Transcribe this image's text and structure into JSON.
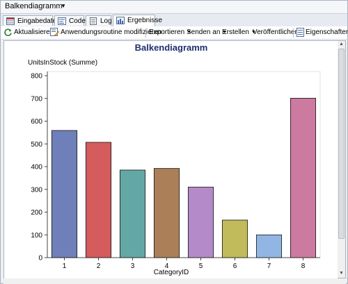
{
  "window": {
    "title": "Balkendiagramm"
  },
  "tabs": [
    {
      "label": "Eingabedaten",
      "active": false,
      "icon": "data-icon"
    },
    {
      "label": "Code",
      "active": false,
      "icon": "code-icon"
    },
    {
      "label": "Log",
      "active": false,
      "icon": "log-icon"
    },
    {
      "label": "Ergebnisse",
      "active": true,
      "icon": "results-icon"
    }
  ],
  "toolbar": {
    "refresh": "Aktualisieren",
    "modify": "Anwendungsroutine modifizieren",
    "export": "Exportieren",
    "send": "Senden an",
    "create": "Erstellen",
    "publish": "Veröffentlichen",
    "properties": "Eigenschaften"
  },
  "colors": {
    "title": "#1f2f6e",
    "bars": [
      "#6f7fba",
      "#d45c5c",
      "#64a8a6",
      "#ab8058",
      "#b58ac9",
      "#c1bb5b",
      "#92b6e3",
      "#cd7aa0"
    ]
  },
  "chart_data": {
    "type": "bar",
    "title": "Balkendiagramm",
    "ylabel": "UnitsInStock (Summe)",
    "xlabel": "CategoryID",
    "categories": [
      "1",
      "2",
      "3",
      "4",
      "5",
      "6",
      "7",
      "8"
    ],
    "values": [
      559,
      507,
      385,
      392,
      310,
      165,
      100,
      701
    ],
    "ylim": [
      0,
      800
    ],
    "yticks": [
      0,
      100,
      200,
      300,
      400,
      500,
      600,
      700,
      800
    ],
    "grid": false,
    "legend": "none"
  }
}
